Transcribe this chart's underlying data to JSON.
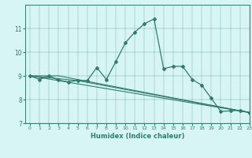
{
  "xlabel": "Humidex (Indice chaleur)",
  "ylabel": "",
  "background_color": "#d8f5f5",
  "line_color": "#2e7d6e",
  "xlim": [
    -0.5,
    23
  ],
  "ylim": [
    7,
    12
  ],
  "yticks": [
    7,
    8,
    9,
    10,
    11
  ],
  "xticks": [
    0,
    1,
    2,
    3,
    4,
    5,
    6,
    7,
    8,
    9,
    10,
    11,
    12,
    13,
    14,
    15,
    16,
    17,
    18,
    19,
    20,
    21,
    22,
    23
  ],
  "series": [
    {
      "x": [
        0,
        1,
        2,
        3,
        4,
        5,
        6,
        7,
        8,
        9,
        10,
        11,
        12,
        13,
        14,
        15,
        16,
        17,
        18,
        19,
        20,
        21,
        22,
        23
      ],
      "y": [
        9.0,
        8.85,
        9.0,
        8.82,
        8.75,
        8.8,
        8.8,
        9.35,
        8.85,
        9.6,
        10.4,
        10.85,
        11.2,
        11.4,
        9.3,
        9.4,
        9.4,
        8.85,
        8.6,
        8.05,
        7.5,
        7.52,
        7.55,
        7.45
      ],
      "style": "-",
      "marker": "D",
      "markersize": 2.0,
      "linewidth": 0.9
    },
    {
      "x": [
        0,
        3,
        23
      ],
      "y": [
        9.0,
        9.0,
        7.45
      ],
      "style": "-",
      "marker": null,
      "markersize": 0,
      "linewidth": 0.8
    },
    {
      "x": [
        0,
        23
      ],
      "y": [
        9.0,
        7.45
      ],
      "style": "-",
      "marker": null,
      "markersize": 0,
      "linewidth": 0.8
    },
    {
      "x": [
        0,
        5,
        23
      ],
      "y": [
        9.0,
        8.8,
        7.45
      ],
      "style": "-",
      "marker": null,
      "markersize": 0,
      "linewidth": 0.8
    }
  ]
}
